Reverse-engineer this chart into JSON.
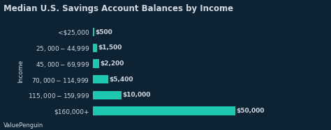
{
  "title": "Median U.S. Savings Account Balances by Income",
  "categories": [
    "<$25,000",
    "$25,000 - $44,999",
    "$45,000 - $69,999",
    "$70,000 - $114,999",
    "$115,000 - $159,999",
    "$160,000+"
  ],
  "values": [
    500,
    1500,
    2200,
    5400,
    10000,
    50000
  ],
  "labels": [
    "$500",
    "$1,500",
    "$2,200",
    "$5,400",
    "$10,000",
    "$50,000"
  ],
  "bar_color": "#1ec8b0",
  "background_color": "#0d2233",
  "text_color": "#d0d8e0",
  "ylabel": "Income",
  "watermark": "ValuePenguin",
  "title_fontsize": 8.5,
  "label_fontsize": 6.5,
  "tick_fontsize": 6.5,
  "watermark_fontsize": 6,
  "xlim": 58000,
  "bar_height": 0.55
}
